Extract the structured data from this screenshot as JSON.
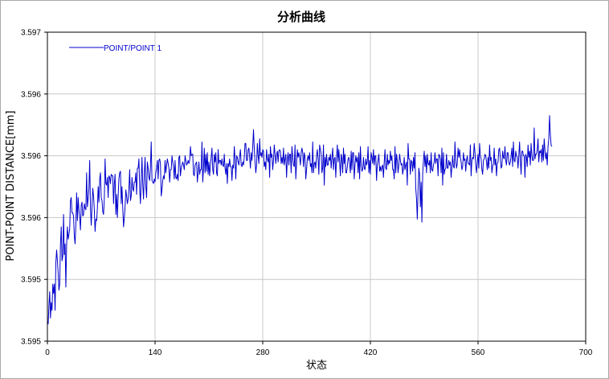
{
  "chart_data": {
    "type": "line",
    "title": "分析曲线",
    "xlabel": "状态",
    "ylabel": "POINT-POINT DISTANCE[mm]",
    "xlim": [
      0,
      700
    ],
    "ylim": [
      3.595,
      3.597
    ],
    "x_ticks": [
      0,
      140,
      280,
      420,
      560,
      700
    ],
    "x_tick_labels": [
      "0",
      "140",
      "280",
      "420",
      "560",
      "700"
    ],
    "y_ticks": [
      3.595,
      3.5954,
      3.5958,
      3.5962,
      3.5966,
      3.597
    ],
    "y_tick_labels": [
      "3.595",
      "3.595",
      "3.596",
      "3.596",
      "3.596",
      "3.597"
    ],
    "grid": true,
    "legend_position": "top-left",
    "series": [
      {
        "name": "POINT/POINT 1",
        "color": "#0000cc",
        "x_start": 1,
        "x_step": 1,
        "values": [
          3.59511,
          3.59523,
          3.59532,
          3.59515,
          3.59525,
          3.5952,
          3.59537,
          3.59531,
          3.59537,
          3.5952,
          3.59551,
          3.59559,
          3.59552,
          3.59544,
          3.59533,
          3.59537,
          3.59563,
          3.59574,
          3.59552,
          3.59555,
          3.59582,
          3.59556,
          3.59563,
          3.59535,
          3.59563,
          3.59574,
          3.59566,
          3.59569,
          3.59573,
          3.59591,
          3.59593,
          3.59583,
          3.59583,
          3.59581,
          3.59568,
          3.59563,
          3.59575,
          3.59596,
          3.59578,
          3.59593,
          3.59585,
          3.5958,
          3.59572,
          3.59588,
          3.5959,
          3.59581,
          3.59582,
          3.59589,
          3.59586,
          3.59585,
          3.59609,
          3.59587,
          3.59592,
          3.59599,
          3.59617,
          3.59586,
          3.59575,
          3.59587,
          3.59599,
          3.59594,
          3.59585,
          3.59571,
          3.59579,
          3.59578,
          3.59586,
          3.596,
          3.5959,
          3.59605,
          3.59609,
          3.59593,
          3.59591,
          3.59584,
          3.59582,
          3.59592,
          3.59618,
          3.59602,
          3.59601,
          3.59606,
          3.59593,
          3.59607,
          3.59606,
          3.59602,
          3.59608,
          3.59607,
          3.59607,
          3.59589,
          3.59602,
          3.59608,
          3.59582,
          3.59595,
          3.5958,
          3.59594,
          3.59605,
          3.59609,
          3.5961,
          3.59589,
          3.596,
          3.59586,
          3.59574,
          3.5958,
          3.59587,
          3.59598,
          3.59594,
          3.59589,
          3.59592,
          3.59599,
          3.59611,
          3.59591,
          3.59594,
          3.59606,
          3.59599,
          3.59597,
          3.59603,
          3.59603,
          3.59609,
          3.59595,
          3.59612,
          3.59612,
          3.59618,
          3.59599,
          3.59589,
          3.59604,
          3.59619,
          3.59601,
          3.59592,
          3.59608,
          3.59619,
          3.596,
          3.59593,
          3.59616,
          3.59612,
          3.59606,
          3.59604,
          3.59613,
          3.59629,
          3.59604,
          3.59603,
          3.59602,
          3.59605,
          3.59603,
          3.59609,
          3.59612,
          3.59617,
          3.59605,
          3.59617,
          3.59618,
          3.59615,
          3.59594,
          3.59598,
          3.59604,
          3.59607,
          3.59605,
          3.59617,
          3.59609,
          3.59614,
          3.59618,
          3.59615,
          3.59612,
          3.59603,
          3.59611,
          3.59611,
          3.5962,
          3.59616,
          3.59613,
          3.59605,
          3.59617,
          3.59606,
          3.59605,
          3.59608,
          3.59604,
          3.59619,
          3.5962,
          3.59607,
          3.59612,
          3.59614,
          3.59616,
          3.59614,
          3.59611,
          3.5962,
          3.59617,
          3.59614,
          3.59615,
          3.59617,
          3.59615,
          3.59617,
          3.59626,
          3.5962,
          3.59621,
          3.59621,
          3.59608,
          3.59607,
          3.59614,
          3.59615,
          3.59616,
          3.59603,
          3.59609,
          3.59616,
          3.59608,
          3.59611,
          3.59611,
          3.59629,
          3.59603,
          3.59612,
          3.59625,
          3.59609,
          3.59621,
          3.5961,
          3.59622,
          3.59608,
          3.59616,
          3.59607,
          3.59614,
          3.59619,
          3.59625,
          3.59611,
          3.59608,
          3.59621,
          3.59616,
          3.59622,
          3.59609,
          3.59607,
          3.59624,
          3.59615,
          3.59617,
          3.59617,
          3.59614,
          3.59618,
          3.59614,
          3.59613,
          3.59621,
          3.59612,
          3.59608,
          3.59615,
          3.59602,
          3.59615,
          3.59613,
          3.59618,
          3.59613,
          3.59613,
          3.59604,
          3.59614,
          3.59612,
          3.59626,
          3.59618,
          3.59605,
          3.5962,
          3.59619,
          3.59616,
          3.59614,
          3.5962,
          3.59624,
          3.59614,
          3.59613,
          3.59616,
          3.59614,
          3.59619,
          3.59628,
          3.59628,
          3.59617,
          3.59617,
          3.59624,
          3.59625,
          3.59619,
          3.59612,
          3.59622,
          3.59617,
          3.59626,
          3.59637,
          3.59625,
          3.59616,
          3.59609,
          3.59614,
          3.59628,
          3.5962,
          3.59615,
          3.59631,
          3.5962,
          3.59622,
          3.59619,
          3.59624,
          3.59623,
          3.59613,
          3.59616,
          3.59611,
          3.59624,
          3.59618,
          3.59616,
          3.59621,
          3.59606,
          3.59626,
          3.59619,
          3.59621,
          3.59611,
          3.59617,
          3.59627,
          3.59621,
          3.59615,
          3.59621,
          3.59623,
          3.59616,
          3.59623,
          3.59624,
          3.59623,
          3.59615,
          3.59619,
          3.59615,
          3.59625,
          3.59614,
          3.59618,
          3.59621,
          3.59606,
          3.59618,
          3.59622,
          3.59614,
          3.59621,
          3.59621,
          3.59609,
          3.59626,
          3.59619,
          3.59614,
          3.59613,
          3.59627,
          3.59605,
          3.59615,
          3.59624,
          3.59619,
          3.59622,
          3.59619,
          3.59614,
          3.59622,
          3.59625,
          3.59622,
          3.59613,
          3.59622,
          3.59619,
          3.59605,
          3.59611,
          3.59618,
          3.5962,
          3.59617,
          3.59622,
          3.59613,
          3.59615,
          3.59609,
          3.59629,
          3.59609,
          3.59615,
          3.59616,
          3.59612,
          3.5962,
          3.59624,
          3.59618,
          3.59608,
          3.59627,
          3.59624,
          3.59621,
          3.59609,
          3.59612,
          3.59627,
          3.59601,
          3.59619,
          3.59613,
          3.59621,
          3.59614,
          3.59614,
          3.59619,
          3.59617,
          3.59621,
          3.59612,
          3.59619,
          3.59625,
          3.59611,
          3.59618,
          3.59619,
          3.59606,
          3.59619,
          3.59627,
          3.59616,
          3.59624,
          3.59616,
          3.59607,
          3.59621,
          3.59618,
          3.59609,
          3.59625,
          3.59615,
          3.59621,
          3.59609,
          3.59609,
          3.59613,
          3.59618,
          3.59619,
          3.59615,
          3.59609,
          3.59623,
          3.59611,
          3.59622,
          3.59622,
          3.59605,
          3.59614,
          3.5962,
          3.59616,
          3.59619,
          3.59609,
          3.59622,
          3.59605,
          3.59626,
          3.59614,
          3.5961,
          3.59611,
          3.59619,
          3.59612,
          3.59611,
          3.59618,
          3.59614,
          3.59616,
          3.59626,
          3.59609,
          3.59617,
          3.59608,
          3.59622,
          3.59619,
          3.59615,
          3.59624,
          3.59614,
          3.5962,
          3.5962,
          3.59604,
          3.59614,
          3.59617,
          3.59621,
          3.5961,
          3.59613,
          3.5961,
          3.59613,
          3.59614,
          3.59606,
          3.59616,
          3.59624,
          3.59612,
          3.59611,
          3.59621,
          3.59614,
          3.59617,
          3.59615,
          3.59623,
          3.59617,
          3.5962,
          3.59611,
          3.59611,
          3.59605,
          3.59626,
          3.59609,
          3.59621,
          3.59617,
          3.59609,
          3.59614,
          3.59621,
          3.59617,
          3.59614,
          3.59615,
          3.59608,
          3.59612,
          3.59619,
          3.59611,
          3.59614,
          3.59616,
          3.59601,
          3.59628,
          3.59618,
          3.59618,
          3.59608,
          3.59617,
          3.59616,
          3.5961,
          3.59619,
          3.59612,
          3.59622,
          3.59599,
          3.59592,
          3.59579,
          3.59598,
          3.59612,
          3.59608,
          3.59587,
          3.59603,
          3.59577,
          3.59608,
          3.59617,
          3.59623,
          3.59613,
          3.5962,
          3.59609,
          3.59621,
          3.59615,
          3.59614,
          3.59617,
          3.59609,
          3.59622,
          3.59611,
          3.5961,
          3.59614,
          3.59616,
          3.59622,
          3.59615,
          3.59618,
          3.59618,
          3.59607,
          3.59621,
          3.5962,
          3.59618,
          3.59609,
          3.59625,
          3.59601,
          3.59622,
          3.59608,
          3.59611,
          3.59612,
          3.59621,
          3.59612,
          3.59612,
          3.59617,
          3.59614,
          3.59616,
          3.59606,
          3.59613,
          3.5962,
          3.59613,
          3.59612,
          3.59629,
          3.59617,
          3.59612,
          3.59615,
          3.59625,
          3.59619,
          3.59624,
          3.59619,
          3.59616,
          3.59611,
          3.59613,
          3.59622,
          3.59617,
          3.59618,
          3.5961,
          3.59617,
          3.5962,
          3.59615,
          3.59615,
          3.59614,
          3.59627,
          3.59607,
          3.59617,
          3.59619,
          3.59618,
          3.59628,
          3.59622,
          3.59614,
          3.59609,
          3.59616,
          3.59621,
          3.59612,
          3.59628,
          3.5962,
          3.59618,
          3.59611,
          3.59608,
          3.59617,
          3.59618,
          3.59621,
          3.5962,
          3.59616,
          3.59611,
          3.59619,
          3.59612,
          3.59627,
          3.59617,
          3.59619,
          3.59609,
          3.59613,
          3.59615,
          3.59625,
          3.59614,
          3.59618,
          3.59607,
          3.59615,
          3.59616,
          3.59624,
          3.59625,
          3.59618,
          3.59612,
          3.59613,
          3.59623,
          3.59619,
          3.59618,
          3.59626,
          3.59617,
          3.59614,
          3.59622,
          3.59622,
          3.59616,
          3.59614,
          3.59616,
          3.5962,
          3.59625,
          3.59613,
          3.59629,
          3.59617,
          3.59616,
          3.59623,
          3.5962,
          3.59619,
          3.59612,
          3.5962,
          3.59629,
          3.59617,
          3.59608,
          3.59623,
          3.59623,
          3.5962,
          3.5962,
          3.59606,
          3.59621,
          3.59619,
          3.59613,
          3.59627,
          3.59619,
          3.59623,
          3.59614,
          3.59628,
          3.5962,
          3.59617,
          3.59617,
          3.59638,
          3.59618,
          3.59621,
          3.59621,
          3.59624,
          3.59631,
          3.59616,
          3.59623,
          3.59622,
          3.59624,
          3.59616,
          3.59627,
          3.59617,
          3.59631,
          3.59624,
          3.59618,
          3.59622,
          3.59614,
          3.59626,
          3.59631,
          3.59646,
          3.59634,
          3.59627,
          3.59626
        ]
      }
    ]
  }
}
